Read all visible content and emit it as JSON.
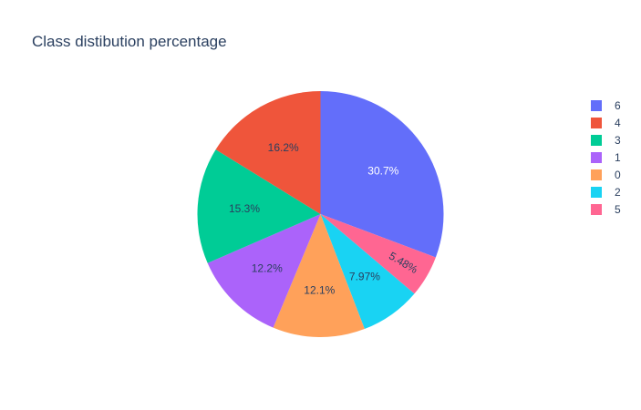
{
  "chart_data": {
    "type": "pie",
    "title": "Class distibution percentage",
    "categories": [
      "6",
      "4",
      "3",
      "1",
      "0",
      "2",
      "5"
    ],
    "values": [
      30.7,
      16.2,
      15.3,
      12.2,
      12.1,
      7.97,
      5.48
    ],
    "value_labels": [
      "30.7%",
      "16.2%",
      "15.3%",
      "12.2%",
      "12.1%",
      "7.97%",
      "5.48%"
    ],
    "order_by_angle_clockwise_from_top": [
      "6",
      "5",
      "2",
      "0",
      "1",
      "3",
      "4"
    ],
    "colors": {
      "6": "#636efa",
      "4": "#ef553b",
      "3": "#00cc96",
      "1": "#ab63fa",
      "0": "#ffa15a",
      "2": "#19d3f3",
      "5": "#ff6692"
    },
    "label_text_colors": {
      "6": "#ffffff",
      "4": "#2a3f5f",
      "3": "#2a3f5f",
      "1": "#2a3f5f",
      "0": "#2a3f5f",
      "2": "#2a3f5f",
      "5": "#2a3f5f"
    },
    "legend": {
      "placement": "top-right",
      "entries": [
        "6",
        "4",
        "3",
        "1",
        "0",
        "2",
        "5"
      ]
    }
  }
}
